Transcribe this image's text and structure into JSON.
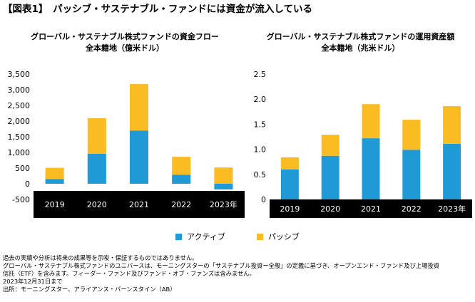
{
  "page_title": "【図表1】　パッシブ・サステナブル・ファンドには資金が流入している",
  "colors": {
    "active": "#1f9ad6",
    "passive": "#fbbb22",
    "axis_band": "#000000",
    "axis_text": "#ffffff"
  },
  "legend": [
    {
      "label": "アクティブ",
      "color": "#1f9ad6"
    },
    {
      "label": "パッシブ",
      "color": "#fbbb22"
    }
  ],
  "chart_data": [
    {
      "type": "bar",
      "stacked": true,
      "title": "グローバル・サステナブル株式ファンドの資金フロー",
      "subtitle": "全本籍地（億米ドル）",
      "categories": [
        "2019",
        "2020",
        "2021",
        "2022",
        "2023年"
      ],
      "series": [
        {
          "name": "アクティブ",
          "values": [
            150,
            960,
            1700,
            290,
            -180
          ]
        },
        {
          "name": "パッシブ",
          "values": [
            360,
            1130,
            1480,
            570,
            520
          ]
        }
      ],
      "ylim": [
        -500,
        3500
      ],
      "yticks": [
        -500,
        0,
        500,
        1000,
        1500,
        2000,
        2500,
        3000,
        3500
      ],
      "ytick_labels": [
        "-500",
        "0",
        "500",
        "1,000",
        "1,500",
        "2,000",
        "2,500",
        "3,000",
        "3,500"
      ],
      "grid": false
    },
    {
      "type": "bar",
      "stacked": true,
      "title": "グローバル・サステナブル株式ファンドの運用資産額",
      "subtitle": "全本籍地（兆米ドル）",
      "categories": [
        "2019",
        "2020",
        "2021",
        "2022",
        "2023年"
      ],
      "series": [
        {
          "name": "アクティブ",
          "values": [
            0.6,
            0.87,
            1.22,
            0.99,
            1.11
          ]
        },
        {
          "name": "パッシブ",
          "values": [
            0.24,
            0.42,
            0.68,
            0.6,
            0.75
          ]
        }
      ],
      "ylim": [
        0,
        2.5
      ],
      "yticks": [
        0,
        0.5,
        1.0,
        1.5,
        2.0,
        2.5
      ],
      "ytick_labels": [
        "0",
        "0.5",
        "1.0",
        "1.5",
        "2.0",
        "2.5"
      ],
      "grid": false
    }
  ],
  "notes": [
    "過去の実績や分析は将来の成果等を示唆・保証するものではありません。",
    "グローバル・サステナブル株式ファンドのユニバースは、モーニングスターの「サステナブル投資ー全般」の定義に基づき、オープンエンド・ファンド及び上場投資",
    "信託（ETF）を含みます。フィーダー・ファンド及びファンド・オブ・ファンズは含みません。",
    "2023年12月31日まで",
    "出所：モーニングスター、アライアンス・バーンスタイン（AB）"
  ]
}
